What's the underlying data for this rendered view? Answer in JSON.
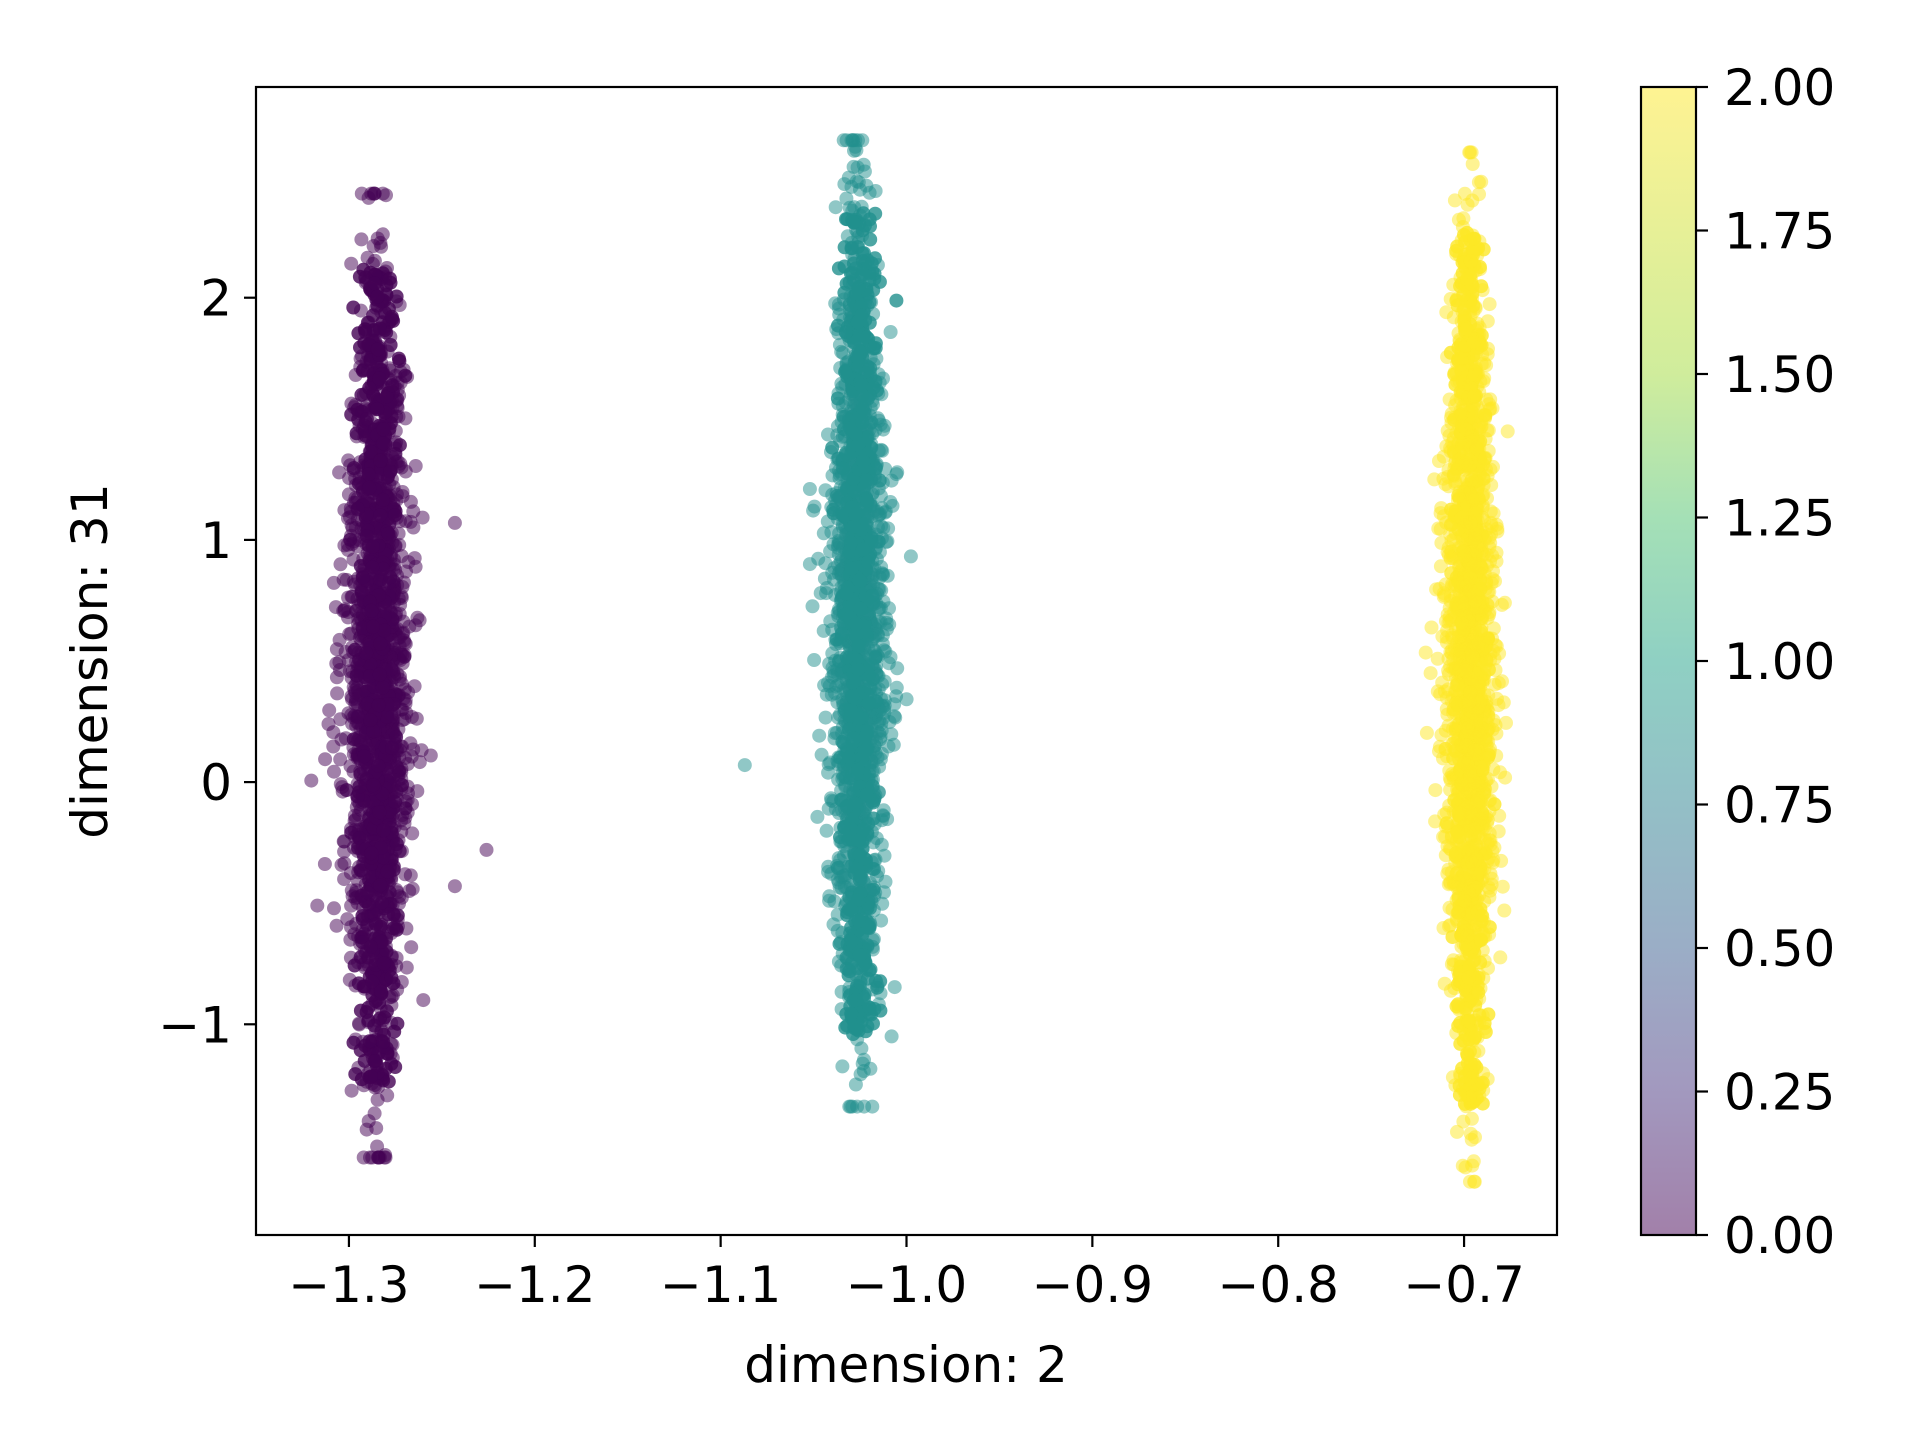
{
  "chart_data": {
    "type": "scatter",
    "title": "",
    "xlabel": "dimension: 2",
    "ylabel": "dimension: 31",
    "xlim": [
      -1.35,
      -0.65
    ],
    "ylim": [
      -1.87,
      2.87
    ],
    "x_ticks": [
      -1.3,
      -1.2,
      -1.1,
      -1.0,
      -0.9,
      -0.8,
      -0.7
    ],
    "x_tick_labels": [
      "−1.3",
      "−1.2",
      "−1.1",
      "−1.0",
      "−0.9",
      "−0.8",
      "−0.7"
    ],
    "y_ticks": [
      -1,
      0,
      1,
      2
    ],
    "y_tick_labels": [
      "−1",
      "0",
      "1",
      "2"
    ],
    "grid": false,
    "marker_alpha": 0.5,
    "colorbar": {
      "colormap": "viridis",
      "range": [
        0.0,
        2.0
      ],
      "ticks": [
        0.0,
        0.25,
        0.5,
        0.75,
        1.0,
        1.25,
        1.5,
        1.75,
        2.0
      ],
      "tick_labels": [
        "0.00",
        "0.25",
        "0.50",
        "0.75",
        "1.00",
        "1.25",
        "1.50",
        "1.75",
        "2.00"
      ],
      "alpha": 0.5
    },
    "series": [
      {
        "class_value": 0,
        "color": "#440154",
        "x_center": -1.285,
        "x_spread": 0.009,
        "y_range": [
          -1.55,
          2.43
        ],
        "outliers": [
          [
            -1.243,
            1.07
          ],
          [
            -1.226,
            -0.28
          ],
          [
            -1.243,
            -0.43
          ],
          [
            -1.317,
            -0.51
          ],
          [
            -1.311,
            0.24
          ],
          [
            -1.26,
            -0.9
          ]
        ]
      },
      {
        "class_value": 1,
        "color": "#21908d",
        "x_center": -1.026,
        "x_spread": 0.008,
        "y_range": [
          -1.34,
          2.65
        ],
        "outliers": [
          [
            -1.087,
            0.07
          ],
          [
            -1.052,
            1.21
          ],
          [
            -1.052,
            0.9
          ],
          [
            -1.005,
            0.47
          ],
          [
            -1.008,
            -1.05
          ]
        ]
      },
      {
        "class_value": 2,
        "color": "#fde725",
        "x_center": -0.697,
        "x_spread": 0.007,
        "y_range": [
          -1.65,
          2.6
        ],
        "outliers": [
          [
            -0.718,
            0.45
          ],
          [
            -0.716,
            1.25
          ]
        ]
      }
    ]
  }
}
